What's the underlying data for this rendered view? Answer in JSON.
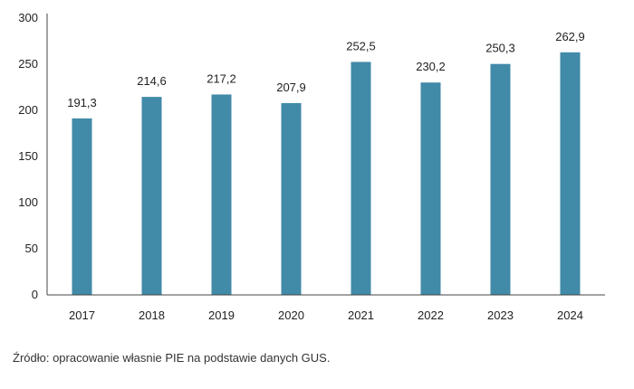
{
  "chart_data": {
    "type": "bar",
    "title": "",
    "xlabel": "",
    "ylabel": "",
    "categories": [
      "2017",
      "2018",
      "2019",
      "2020",
      "2021",
      "2022",
      "2023",
      "2024"
    ],
    "values": [
      191.3,
      214.6,
      217.2,
      207.9,
      252.5,
      230.2,
      250.3,
      262.9
    ],
    "value_labels": [
      "191,3",
      "214,6",
      "217,2",
      "207,9",
      "252,5",
      "230,2",
      "250,3",
      "262,9"
    ],
    "ylim": [
      0,
      300
    ],
    "yticks": [
      0,
      50,
      100,
      150,
      200,
      250,
      300
    ],
    "ytick_labels": [
      "0",
      "50",
      "100",
      "150",
      "200",
      "250",
      "300"
    ],
    "bar_color": "#418aa8",
    "axis_color": "#444444",
    "grid": false,
    "legend": "none"
  },
  "footnote": "Źródło: opracowanie własnie PIE na podstawie danych GUS."
}
